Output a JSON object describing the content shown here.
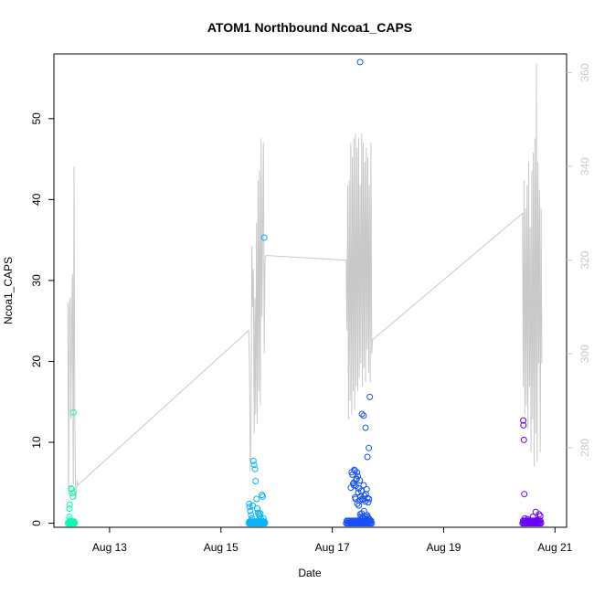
{
  "chart_data": {
    "type": "scatter",
    "title": "ATOM1 Northbound Ncoa1_CAPS",
    "xlabel": "Date",
    "ylabel": "Ncoa1_CAPS",
    "x_ticks": [
      "Aug 13",
      "Aug 15",
      "Aug 17",
      "Aug 19",
      "Aug 21"
    ],
    "x_range": [
      "2023-08-12 00:00",
      "2023-08-21 05:00"
    ],
    "y_range": [
      -0.5,
      58
    ],
    "y_ticks": [
      0,
      10,
      20,
      30,
      40,
      50
    ],
    "y2_range": [
      263,
      364
    ],
    "y2_ticks": [
      280,
      300,
      320,
      340,
      360
    ],
    "y2_color": "#c8c8c8",
    "grid": false,
    "legend": "none",
    "scatter_series": [
      {
        "color": "#00ffb0",
        "x": [
          "Aug 12 06:00",
          "Aug 12 06:30",
          "Aug 12 06:45",
          "Aug 12 07:00",
          "Aug 12 07:15",
          "Aug 12 07:30",
          "Aug 12 07:45",
          "Aug 12 08:00",
          "Aug 12 08:15",
          "Aug 12 08:30",
          "Aug 12 08:45",
          "Aug 12 09:00",
          "Aug 12 06:30",
          "Aug 12 06:40",
          "Aug 12 06:50",
          "Aug 12 07:05",
          "Aug 12 07:20",
          "Aug 12 07:35",
          "Aug 12 07:50",
          "Aug 12 08:05",
          "Aug 12 08:20",
          "Aug 12 08:35",
          "Aug 12 06:35",
          "Aug 12 06:55",
          "Aug 12 07:10",
          "Aug 12 07:25",
          "Aug 12 07:40",
          "Aug 12 07:55",
          "Aug 12 08:10",
          "Aug 12 08:25",
          "Aug 12 08:40",
          "Aug 12 06:38",
          "Aug 12 06:42",
          "Aug 12 06:48",
          "Aug 12 06:52",
          "Aug 12 07:25",
          "Aug 12 07:40",
          "Aug 12 07:55",
          "Aug 12 08:10",
          "Aug 12 08:25"
        ],
        "y": [
          0.0,
          0.0,
          0.0,
          0.0,
          0.0,
          0.0,
          0.0,
          0.0,
          0.0,
          0.0,
          0.0,
          0.0,
          0.1,
          0.1,
          0.1,
          0.1,
          0.1,
          0.1,
          0.1,
          0.1,
          0.1,
          0.1,
          0.2,
          0.2,
          0.2,
          0.2,
          0.2,
          0.2,
          0.2,
          0.2,
          0.2,
          0.8,
          1.8,
          2.3,
          0.4,
          4.3,
          4.2,
          3.7,
          3.3,
          13.7
        ]
      },
      {
        "color": "#00b4ff",
        "x": [
          "Aug 15 12:00",
          "Aug 15 12:30",
          "Aug 15 13:00",
          "Aug 15 13:30",
          "Aug 15 14:00",
          "Aug 15 14:30",
          "Aug 15 15:00",
          "Aug 15 15:30",
          "Aug 15 16:00",
          "Aug 15 16:30",
          "Aug 15 17:00",
          "Aug 15 17:30",
          "Aug 15 18:00",
          "Aug 15 18:30",
          "Aug 15 19:00",
          "Aug 15 12:15",
          "Aug 15 12:45",
          "Aug 15 13:15",
          "Aug 15 13:45",
          "Aug 15 14:15",
          "Aug 15 14:45",
          "Aug 15 15:15",
          "Aug 15 15:45",
          "Aug 15 16:15",
          "Aug 15 16:45",
          "Aug 15 17:15",
          "Aug 15 17:45",
          "Aug 15 18:15",
          "Aug 15 18:45",
          "Aug 15 12:10",
          "Aug 15 12:20",
          "Aug 15 12:40",
          "Aug 15 13:00",
          "Aug 15 13:20",
          "Aug 15 13:40",
          "Aug 15 14:00",
          "Aug 15 14:20",
          "Aug 15 14:40",
          "Aug 15 15:00",
          "Aug 15 15:20",
          "Aug 15 15:40",
          "Aug 15 16:00",
          "Aug 15 16:20",
          "Aug 15 16:40",
          "Aug 15 17:00",
          "Aug 15 17:20",
          "Aug 15 17:40",
          "Aug 15 18:00",
          "Aug 15 18:20",
          "Aug 15 18:40"
        ],
        "y": [
          0.0,
          0.0,
          0.0,
          0.0,
          0.0,
          0.0,
          0.0,
          0.0,
          0.0,
          0.0,
          0.0,
          0.0,
          0.0,
          0.0,
          0.0,
          0.2,
          0.2,
          0.2,
          0.2,
          0.2,
          0.2,
          0.2,
          0.2,
          0.2,
          0.2,
          0.2,
          0.2,
          0.2,
          0.2,
          2.4,
          2.0,
          1.5,
          1.0,
          0.6,
          2.2,
          7.7,
          7.2,
          6.7,
          5.2,
          3.0,
          1.8,
          1.3,
          1.1,
          0.9,
          1.2,
          0.5,
          3.5,
          3.3,
          0.6,
          35.3
        ]
      },
      {
        "color": "#1550ff",
        "x": [
          "Aug 17 06:00",
          "Aug 17 06:30",
          "Aug 17 07:00",
          "Aug 17 07:30",
          "Aug 17 08:00",
          "Aug 17 08:30",
          "Aug 17 09:00",
          "Aug 17 09:30",
          "Aug 17 10:00",
          "Aug 17 10:30",
          "Aug 17 11:00",
          "Aug 17 11:30",
          "Aug 17 12:00",
          "Aug 17 12:30",
          "Aug 17 13:00",
          "Aug 17 13:30",
          "Aug 17 14:00",
          "Aug 17 14:30",
          "Aug 17 15:00",
          "Aug 17 15:30",
          "Aug 17 16:00",
          "Aug 17 16:30",
          "Aug 17 17:00",
          "Aug 17 06:15",
          "Aug 17 06:45",
          "Aug 17 07:15",
          "Aug 17 07:45",
          "Aug 17 08:15",
          "Aug 17 08:45",
          "Aug 17 09:15",
          "Aug 17 09:45",
          "Aug 17 10:15",
          "Aug 17 10:45",
          "Aug 17 11:15",
          "Aug 17 11:45",
          "Aug 17 12:15",
          "Aug 17 12:45",
          "Aug 17 13:15",
          "Aug 17 13:45",
          "Aug 17 14:15",
          "Aug 17 14:45",
          "Aug 17 15:15",
          "Aug 17 15:45",
          "Aug 17 16:15",
          "Aug 17 16:45",
          "Aug 17 08:00",
          "Aug 17 08:20",
          "Aug 17 08:40",
          "Aug 17 09:00",
          "Aug 17 09:20",
          "Aug 17 09:40",
          "Aug 17 10:00",
          "Aug 17 10:20",
          "Aug 17 10:40",
          "Aug 17 11:00",
          "Aug 17 11:20",
          "Aug 17 11:40",
          "Aug 17 12:00",
          "Aug 17 12:20",
          "Aug 17 12:40",
          "Aug 17 13:00",
          "Aug 17 13:20",
          "Aug 17 13:40",
          "Aug 17 14:00",
          "Aug 17 14:20",
          "Aug 17 14:40",
          "Aug 17 15:00",
          "Aug 17 15:20",
          "Aug 17 15:40",
          "Aug 17 16:00",
          "Aug 17 09:10",
          "Aug 17 09:30",
          "Aug 17 09:50",
          "Aug 17 10:10",
          "Aug 17 10:30",
          "Aug 17 10:50",
          "Aug 17 11:10",
          "Aug 17 11:30",
          "Aug 17 11:50",
          "Aug 17 12:10",
          "Aug 17 12:30",
          "Aug 17 12:50",
          "Aug 17 13:10",
          "Aug 17 13:30",
          "Aug 17 13:50",
          "Aug 17 14:10",
          "Aug 17 14:30",
          "Aug 17 14:50",
          "Aug 17 15:10",
          "Aug 17 15:30",
          "Aug 17 15:50",
          "Aug 17 12:00",
          "Aug 17 12:45",
          "Aug 17 13:30",
          "Aug 17 14:20",
          "Aug 17 15:10",
          "Aug 17 15:45",
          "Aug 17 16:10"
        ],
        "y": [
          0.0,
          0.0,
          0.0,
          0.0,
          0.0,
          0.0,
          0.0,
          0.0,
          0.0,
          0.0,
          0.0,
          0.0,
          0.0,
          0.0,
          0.0,
          0.0,
          0.0,
          0.0,
          0.0,
          0.0,
          0.0,
          0.0,
          0.0,
          0.3,
          0.3,
          0.3,
          0.3,
          0.3,
          0.3,
          0.3,
          0.3,
          0.3,
          0.3,
          0.3,
          0.3,
          0.3,
          0.3,
          0.3,
          0.3,
          0.3,
          0.3,
          0.3,
          0.3,
          0.3,
          0.3,
          4.4,
          6.3,
          6.0,
          4.9,
          4.7,
          6.5,
          3.0,
          5.4,
          6.3,
          5.8,
          4.3,
          2.8,
          1.1,
          0.8,
          1.2,
          0.7,
          0.6,
          1.5,
          0.9,
          0.5,
          0.4,
          1.0,
          0.8,
          0.6,
          0.5,
          5.0,
          6.6,
          3.2,
          4.6,
          5.5,
          2.4,
          3.8,
          2.2,
          5.3,
          3.3,
          4.0,
          3.0,
          2.9,
          4.7,
          3.4,
          2.7,
          3.6,
          4.2,
          3.1,
          2.6,
          3.0,
          57.0,
          13.5,
          13.3,
          11.8,
          8.2,
          9.3,
          15.6
        ]
      },
      {
        "color": "#6a00ff",
        "x": [
          "Aug 20 10:00",
          "Aug 20 10:30",
          "Aug 20 11:00",
          "Aug 20 11:30",
          "Aug 20 12:00",
          "Aug 20 12:30",
          "Aug 20 13:00",
          "Aug 20 13:30",
          "Aug 20 14:00",
          "Aug 20 14:30",
          "Aug 20 15:00",
          "Aug 20 15:30",
          "Aug 20 16:00",
          "Aug 20 16:30",
          "Aug 20 17:00",
          "Aug 20 17:30",
          "Aug 20 18:00",
          "Aug 20 10:15",
          "Aug 20 10:45",
          "Aug 20 11:15",
          "Aug 20 11:45",
          "Aug 20 12:15",
          "Aug 20 12:45",
          "Aug 20 13:15",
          "Aug 20 13:45",
          "Aug 20 14:15",
          "Aug 20 14:45",
          "Aug 20 15:15",
          "Aug 20 15:45",
          "Aug 20 16:15",
          "Aug 20 16:45",
          "Aug 20 17:15",
          "Aug 20 17:45",
          "Aug 20 11:00",
          "Aug 20 12:10",
          "Aug 20 14:30",
          "Aug 20 15:40",
          "Aug 20 16:20",
          "Aug 20 17:10",
          "Aug 20 17:40",
          "Aug 20 10:20",
          "Aug 20 10:25",
          "Aug 20 10:35",
          "Aug 20 10:45"
        ],
        "y": [
          0.0,
          0.0,
          0.0,
          0.0,
          0.0,
          0.0,
          0.0,
          0.0,
          0.0,
          0.0,
          0.0,
          0.0,
          0.0,
          0.0,
          0.0,
          0.0,
          0.0,
          0.3,
          0.3,
          0.3,
          0.3,
          0.3,
          0.3,
          0.3,
          0.3,
          0.3,
          0.3,
          0.3,
          0.3,
          0.3,
          0.3,
          0.3,
          0.3,
          0.6,
          0.5,
          0.8,
          1.4,
          0.4,
          1.1,
          0.9,
          12.7,
          12.1,
          10.3,
          3.6
        ]
      }
    ],
    "line_series": {
      "axis": "right",
      "color": "#c8c8c8",
      "x": [
        "Aug 12 06:00",
        "Aug 12 06:20",
        "Aug 12 06:40",
        "Aug 12 07:00",
        "Aug 12 07:20",
        "Aug 12 07:40",
        "Aug 12 08:00",
        "Aug 12 08:20",
        "Aug 12 08:40",
        "Aug 12 09:00",
        "Aug 12 09:20",
        "Aug 12 09:40",
        "Aug 12 10:00",
        "Aug 12 10:20",
        "Aug 15 12:00",
        "Aug 15 12:20",
        "Aug 15 12:40",
        "Aug 15 13:00",
        "Aug 15 13:20",
        "Aug 15 13:40",
        "Aug 15 14:00",
        "Aug 15 14:20",
        "Aug 15 14:40",
        "Aug 15 15:00",
        "Aug 15 15:20",
        "Aug 15 15:40",
        "Aug 15 16:00",
        "Aug 15 16:20",
        "Aug 15 16:40",
        "Aug 15 17:00",
        "Aug 15 17:20",
        "Aug 15 17:40",
        "Aug 15 18:00",
        "Aug 15 18:20",
        "Aug 15 18:40",
        "Aug 15 19:00",
        "Aug 15 19:20",
        "Aug 17 06:00",
        "Aug 17 06:20",
        "Aug 17 06:40",
        "Aug 17 07:00",
        "Aug 17 07:20",
        "Aug 17 07:40",
        "Aug 17 08:00",
        "Aug 17 08:20",
        "Aug 17 08:40",
        "Aug 17 09:00",
        "Aug 17 09:20",
        "Aug 17 09:40",
        "Aug 17 10:00",
        "Aug 17 10:20",
        "Aug 17 10:40",
        "Aug 17 11:00",
        "Aug 17 11:20",
        "Aug 17 11:40",
        "Aug 17 12:00",
        "Aug 17 12:20",
        "Aug 17 12:40",
        "Aug 17 13:00",
        "Aug 17 13:20",
        "Aug 17 13:40",
        "Aug 17 14:00",
        "Aug 17 14:20",
        "Aug 17 14:40",
        "Aug 17 15:00",
        "Aug 17 15:20",
        "Aug 17 15:40",
        "Aug 17 16:00",
        "Aug 17 16:20",
        "Aug 17 16:40",
        "Aug 17 17:00",
        "Aug 17 17:20",
        "Aug 20 10:00",
        "Aug 20 10:20",
        "Aug 20 10:40",
        "Aug 20 11:00",
        "Aug 20 11:20",
        "Aug 20 11:40",
        "Aug 20 12:00",
        "Aug 20 12:20",
        "Aug 20 12:40",
        "Aug 20 13:00",
        "Aug 20 13:20",
        "Aug 20 13:40",
        "Aug 20 14:00",
        "Aug 20 14:20",
        "Aug 20 14:40",
        "Aug 20 15:00",
        "Aug 20 15:20",
        "Aug 20 15:40",
        "Aug 20 16:00",
        "Aug 20 16:20",
        "Aug 20 16:40",
        "Aug 20 17:00",
        "Aug 20 17:20",
        "Aug 20 17:40",
        "Aug 20 18:00",
        "Aug 20 18:20"
      ],
      "y": [
        311,
        270,
        310,
        312,
        286,
        308,
        317,
        272,
        340,
        289,
        269,
        270,
        273,
        272,
        305,
        296,
        275,
        286,
        323,
        310,
        318,
        283,
        312,
        287,
        328,
        285,
        337,
        292,
        339,
        289,
        346,
        308,
        328,
        345,
        300,
        320,
        321,
        320,
        305,
        336,
        286,
        337,
        290,
        345,
        287,
        342,
        292,
        346,
        288,
        347,
        293,
        344,
        292,
        346,
        295,
        336,
        298,
        347,
        293,
        345,
        297,
        341,
        294,
        344,
        301,
        342,
        296,
        336,
        294,
        345,
        300,
        303,
        330,
        293,
        337,
        287,
        331,
        289,
        336,
        284,
        341,
        293,
        327,
        279,
        339,
        286,
        343,
        276,
        346,
        283,
        362,
        277,
        341,
        298,
        335,
        279,
        331,
        298
      ]
    }
  }
}
